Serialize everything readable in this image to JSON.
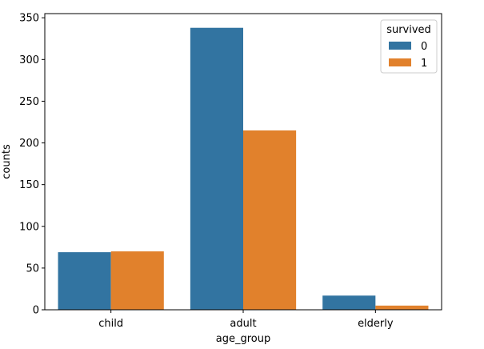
{
  "chart_data": {
    "type": "bar",
    "categories": [
      "child",
      "adult",
      "elderly"
    ],
    "series": [
      {
        "name": "0",
        "values": [
          69,
          338,
          17
        ],
        "color": "#3274a1"
      },
      {
        "name": "1",
        "values": [
          70,
          215,
          5
        ],
        "color": "#e1812c"
      }
    ],
    "xlabel": "age_group",
    "ylabel": "counts",
    "ylim": [
      0,
      355
    ],
    "yticks": [
      0,
      50,
      100,
      150,
      200,
      250,
      300,
      350
    ],
    "grid": false,
    "legend": {
      "title": "survived",
      "placement": "top-right"
    }
  }
}
